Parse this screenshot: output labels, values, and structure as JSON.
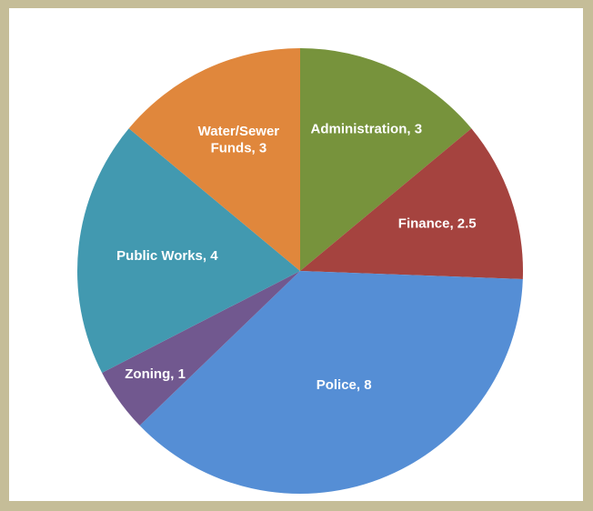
{
  "chart_data": {
    "type": "pie",
    "labels": [
      "Administration, 3",
      "Finance, 2.5",
      "Police, 8",
      "Zoning, 1",
      "Public Works, 4",
      "Water/Sewer Funds, 3"
    ],
    "values": [
      3,
      2.5,
      8,
      1,
      4,
      3
    ],
    "colors": [
      "#77933c",
      "#a5433f",
      "#558ed5",
      "#71588f",
      "#4299b0",
      "#e0873c"
    ]
  }
}
